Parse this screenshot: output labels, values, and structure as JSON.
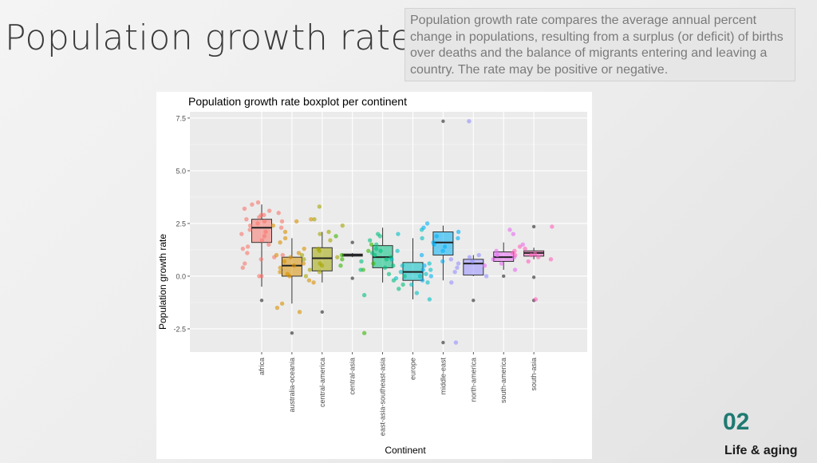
{
  "slide": {
    "title": "Population growth rate",
    "description": "Population growth rate compares the average annual percent change in populations, resulting from a surplus (or deficit) of births over deaths and the balance of migrants entering and leaving a country. The rate may be positive or negative.",
    "section_number": "02",
    "section_label": "Life & aging"
  },
  "chart_data": {
    "type": "boxplot",
    "title": "Population growth rate boxplot per continent",
    "xlabel": "Continent",
    "ylabel": "Population growth rate",
    "ylim": [
      -3.6,
      7.8
    ],
    "yticks": [
      -2.5,
      0.0,
      2.5,
      5.0,
      7.5
    ],
    "ytick_labels": [
      "-2.5",
      "0.0",
      "2.5",
      "5.0",
      "7.5"
    ],
    "grid": true,
    "legend": "none",
    "categories": [
      "africa",
      "australia-oceania",
      "central-america",
      "central-asia",
      "east-asia-southeast-asia",
      "europe",
      "middle-east",
      "north-america",
      "south-america",
      "south-asia"
    ],
    "colors": [
      "#F8766D",
      "#D89000",
      "#A3A500",
      "#39B600",
      "#00BF7D",
      "#00BFC4",
      "#00B0F6",
      "#9590FF",
      "#E76BF3",
      "#FF62BC"
    ],
    "boxes": [
      {
        "category": "africa",
        "whisker_low": -0.5,
        "q1": 1.6,
        "median": 2.3,
        "q3": 2.7,
        "whisker_high": 3.4,
        "outliers": [
          -1.15
        ]
      },
      {
        "category": "australia-oceania",
        "whisker_low": -1.3,
        "q1": 0.0,
        "median": 0.5,
        "q3": 0.9,
        "whisker_high": 1.8,
        "outliers": [
          -2.7
        ]
      },
      {
        "category": "central-america",
        "whisker_low": -0.3,
        "q1": 0.25,
        "median": 0.85,
        "q3": 1.35,
        "whisker_high": 2.1,
        "outliers": [
          -1.7
        ]
      },
      {
        "category": "central-asia",
        "whisker_low": 0.9,
        "q1": 0.95,
        "median": 1.0,
        "q3": 1.05,
        "whisker_high": 1.1,
        "outliers": [
          1.6,
          -0.1
        ]
      },
      {
        "category": "east-asia-southeast-asia",
        "whisker_low": -0.3,
        "q1": 0.4,
        "median": 0.9,
        "q3": 1.45,
        "whisker_high": 2.3,
        "outliers": []
      },
      {
        "category": "europe",
        "whisker_low": -1.1,
        "q1": -0.2,
        "median": 0.2,
        "q3": 0.65,
        "whisker_high": 1.8,
        "outliers": []
      },
      {
        "category": "middle-east",
        "whisker_low": -0.2,
        "q1": 1.0,
        "median": 1.6,
        "q3": 2.1,
        "whisker_high": 2.4,
        "outliers": [
          7.35,
          -3.15
        ]
      },
      {
        "category": "north-america",
        "whisker_low": 0.0,
        "q1": 0.05,
        "median": 0.6,
        "q3": 0.8,
        "whisker_high": 1.0,
        "outliers": [
          -1.15
        ]
      },
      {
        "category": "south-america",
        "whisker_low": 0.3,
        "q1": 0.7,
        "median": 0.9,
        "q3": 1.15,
        "whisker_high": 1.6,
        "outliers": [
          0.0
        ]
      },
      {
        "category": "south-asia",
        "whisker_low": 0.8,
        "q1": 0.95,
        "median": 1.1,
        "q3": 1.2,
        "whisker_high": 1.35,
        "outliers": [
          2.35,
          -0.05,
          -1.15
        ]
      }
    ],
    "points": [
      {
        "category": "africa",
        "values": [
          2.9,
          2.6,
          3.2,
          2.4,
          2.8,
          1.7,
          1.3,
          3.0,
          2.1,
          2.5,
          3.4,
          0.9,
          1.5,
          0.4,
          0.0,
          2.2,
          3.1,
          2.7,
          1.9,
          0.8,
          1.1,
          2.0,
          2.3,
          1.0,
          0.6,
          0.0,
          2.6,
          1.4,
          3.5,
          2.9
        ]
      },
      {
        "category": "australia-oceania",
        "values": [
          -1.7,
          -1.3,
          -1.5,
          -0.3,
          0.0,
          0.2,
          0.5,
          0.7,
          1.0,
          1.3,
          1.8,
          2.1,
          2.4,
          2.7,
          0.4,
          -0.2,
          0.9,
          1.6,
          2.6,
          0.1,
          0.6,
          1.1
        ]
      },
      {
        "category": "central-america",
        "values": [
          0.0,
          0.3,
          0.6,
          0.8,
          1.0,
          1.3,
          1.7,
          2.1,
          2.4,
          2.7,
          3.3,
          0.5,
          1.2,
          0.9,
          2.0,
          0.2
        ]
      },
      {
        "category": "central-asia",
        "values": [
          1.0,
          0.5,
          0.3,
          1.9,
          0.8,
          -2.7,
          1.2,
          0.6,
          1.5
        ]
      },
      {
        "category": "east-asia-southeast-asia",
        "values": [
          -0.6,
          -0.2,
          0.1,
          0.4,
          0.7,
          1.0,
          1.3,
          1.7,
          2.0,
          0.9,
          0.5,
          1.1,
          -0.4,
          0.3,
          1.5,
          0.8,
          1.9,
          -0.9,
          0.0,
          1.2
        ]
      },
      {
        "category": "europe",
        "values": [
          -1.1,
          -0.8,
          -0.4,
          -0.1,
          0.1,
          0.3,
          0.5,
          0.8,
          1.2,
          1.8,
          2.2,
          0.0,
          0.6,
          0.2,
          -0.3,
          2.0
        ]
      },
      {
        "category": "middle-east",
        "values": [
          -0.2,
          0.5,
          1.0,
          1.4,
          1.8,
          2.1,
          2.5,
          1.2,
          0.3,
          1.6,
          0.7,
          2.3,
          1.9,
          0.0,
          1.5
        ]
      },
      {
        "category": "north-america",
        "values": [
          0.0,
          0.4,
          0.6,
          0.8,
          1.0,
          0.2,
          7.35,
          -3.15,
          0.7,
          0.9,
          -0.3
        ]
      },
      {
        "category": "south-america",
        "values": [
          0.3,
          0.6,
          0.9,
          1.2,
          1.5,
          2.0,
          2.2,
          0.8,
          1.0,
          0.5
        ]
      },
      {
        "category": "south-asia",
        "values": [
          0.8,
          1.0,
          1.2,
          1.4,
          1.3,
          1.1,
          0.9,
          1.0,
          0.7,
          -1.1,
          2.35,
          1.05
        ]
      }
    ]
  }
}
